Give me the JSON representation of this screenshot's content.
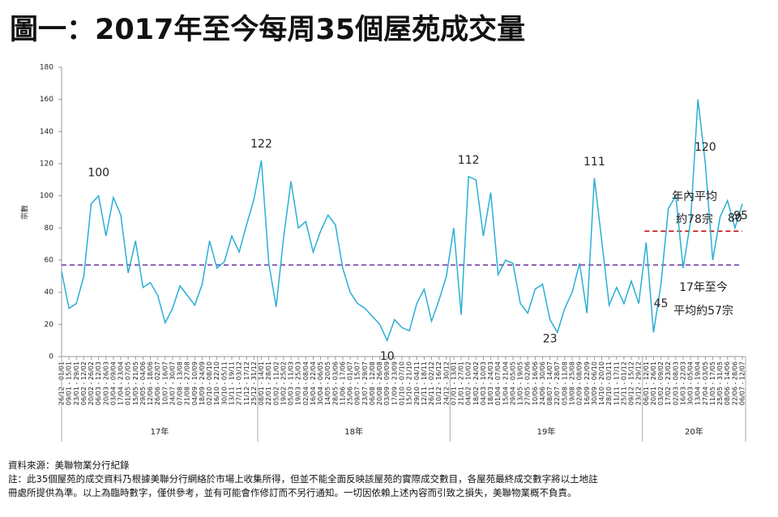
{
  "chart_data": {
    "type": "line",
    "title": "圖一：2017年至今每周35個屋苑成交量",
    "ylabel": "宗數",
    "ylim": [
      0,
      180
    ],
    "yticks": [
      0,
      20,
      40,
      60,
      80,
      100,
      120,
      140,
      160,
      180
    ],
    "categories": [
      "26/12 - 01/01",
      "09/01 - 15/01",
      "23/01 - 29/01",
      "06/02 - 12/02",
      "20/02 - 26/02",
      "06/03 - 12/03",
      "20/03 - 26/03",
      "03/04 - 09/04",
      "17/04 - 23/04",
      "01/05 - 07/05",
      "15/05 - 21/05",
      "29/05 - 04/06",
      "12/06 - 18/06",
      "26/06 - 02/07",
      "10/07 - 16/07",
      "24/07 - 30/07",
      "07/08 - 13/08",
      "21/08 - 27/08",
      "04/09 - 10/09",
      "18/09 - 24/09",
      "02/10 - 08/10",
      "16/10 - 22/10",
      "30/10 - 05/11",
      "13/11 - 19/11",
      "27/11 - 03/12",
      "11/12 - 17/12",
      "25/12 - 31/12",
      "08/01 - 14/01",
      "22/01 - 28/01",
      "05/02 - 11/02",
      "19/02 - 25/02",
      "05/03 - 11/03",
      "19/03 - 25/03",
      "02/04 - 08/04",
      "16/04 - 22/04",
      "30/04 - 06/05",
      "14/05 - 20/05",
      "28/05 - 03/06",
      "11/06 - 17/06",
      "25/06 - 01/07",
      "09/07 - 15/07",
      "23/07 - 29/07",
      "06/08 - 12/08",
      "20/08 - 26/08",
      "03/09 - 09/09",
      "17/09 - 23/09",
      "01/10 - 07/10",
      "15/10 - 21/10",
      "29/10 - 04/11",
      "12/11 - 18/11",
      "26/11 - 02/12",
      "10/12 - 16/12",
      "24/12 - 30/12",
      "07/01 - 13/01",
      "21/01 - 27/01",
      "04/02 - 10/02",
      "18/02 - 24/02",
      "04/03 - 10/03",
      "18/03 - 24/03",
      "01/04 - 07/04",
      "15/04 - 21/04",
      "29/04 - 05/05",
      "13/05 - 19/05",
      "27/05 - 02/06",
      "10/06 - 16/06",
      "24/06 - 30/06",
      "08/07 - 14/07",
      "22/07 - 28/07",
      "05/08 - 11/08",
      "19/08 - 25/08",
      "02/09 - 08/09",
      "16/09 - 22/09",
      "30/09 - 06/10",
      "14/10 - 20/10",
      "28/10 - 03/11",
      "11/11 - 17/11",
      "25/11 - 01/12",
      "09/12 - 15/12",
      "23/12 - 29/12",
      "06/01 - 12/01",
      "20/01 - 26/01",
      "03/02 - 09/02",
      "17/02 - 23/02",
      "02/03 - 08/03",
      "16/03 - 22/03",
      "30/03 - 05/04",
      "13/04 - 19/04",
      "27/04 - 03/05",
      "11/05 - 17/05",
      "25/05 - 31/05",
      "08/06 - 14/06",
      "22/06 - 28/06",
      "06/07 - 12/07"
    ],
    "series": [
      {
        "name": "成交量",
        "color": "#2aaed6",
        "values": [
          53,
          30,
          33,
          50,
          95,
          100,
          75,
          99,
          88,
          52,
          72,
          43,
          46,
          38,
          21,
          30,
          44,
          38,
          32,
          45,
          72,
          55,
          59,
          75,
          65,
          82,
          98,
          122,
          58,
          31,
          74,
          109,
          80,
          84,
          65,
          78,
          88,
          82,
          55,
          40,
          33,
          30,
          25,
          20,
          10,
          23,
          18,
          16,
          33,
          42,
          22,
          35,
          50,
          80,
          26,
          112,
          110,
          75,
          102,
          51,
          60,
          58,
          33,
          27,
          42,
          45,
          23,
          15,
          30,
          40,
          58,
          27,
          111,
          72,
          32,
          43,
          33,
          47,
          33,
          71,
          15,
          45,
          92,
          100,
          55,
          84,
          160,
          120,
          60,
          87,
          97,
          80,
          95
        ]
      }
    ],
    "reference_lines": [
      {
        "value": 57,
        "color": "#7030a0",
        "from": "26/12 - 01/01",
        "label": [
          "17年至今",
          "平均約57宗"
        ]
      },
      {
        "value": 78,
        "color": "#c00000",
        "from": "06/01 - 12/01",
        "label": [
          "年內平均",
          "約78宗"
        ]
      }
    ],
    "groups": [
      {
        "label": "17年",
        "from": "26/12 - 01/01"
      },
      {
        "label": "18年",
        "from": "08/01 - 14/01"
      },
      {
        "label": "19年",
        "from": "07/01 - 13/01"
      },
      {
        "label": "20年",
        "from": "06/01 - 12/01"
      }
    ],
    "notes": [
      "資料來源：美聯物業分行紀錄",
      "註：此35個屋苑的成交資料乃根據美聯分行網絡於市場上收集所得，但並不能全面反映該屋苑的實際成交數目，各屋苑最終成交數字將以土地註",
      "冊處所提供為準。以上為臨時數字，僅供參考，並有可能會作修訂而不另行通知。一切因依賴上述內容而引致之損失，美聯物業概不負責。"
    ]
  }
}
